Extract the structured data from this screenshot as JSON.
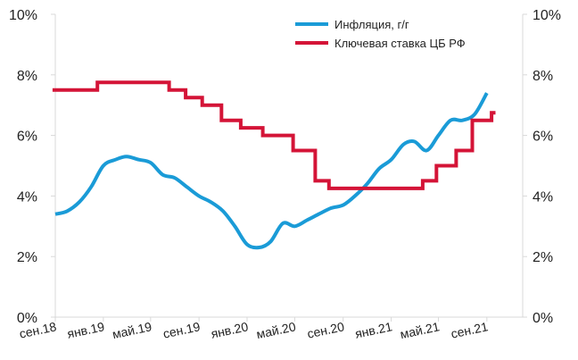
{
  "chart_data": {
    "type": "line",
    "title": "",
    "xlabel": "",
    "ylabel": "",
    "xlim": [
      "2018-09-01",
      "2021-12-01"
    ],
    "ylim": [
      0,
      10
    ],
    "y_ticks": [
      "0%",
      "2%",
      "4%",
      "6%",
      "8%",
      "10%"
    ],
    "y_ticks_right": [
      "0%",
      "2%",
      "4%",
      "6%",
      "8%",
      "10%"
    ],
    "x_ticks": [
      {
        "date": "2018-09-01",
        "label": "сен.18"
      },
      {
        "date": "2019-01-01",
        "label": "янв.19"
      },
      {
        "date": "2019-05-01",
        "label": "май.19"
      },
      {
        "date": "2019-09-01",
        "label": "сен.19"
      },
      {
        "date": "2020-01-01",
        "label": "янв.20"
      },
      {
        "date": "2020-05-01",
        "label": "май.20"
      },
      {
        "date": "2020-09-01",
        "label": "сен.20"
      },
      {
        "date": "2021-01-01",
        "label": "янв.21"
      },
      {
        "date": "2021-05-01",
        "label": "май.21"
      },
      {
        "date": "2021-09-01",
        "label": "сен.21"
      }
    ],
    "grid": false,
    "legend_position": "top-right",
    "series": [
      {
        "name": "Инфляция, г/г",
        "color": "#1a9bd7",
        "style": "smooth",
        "points": [
          [
            "2018-09-01",
            3.4
          ],
          [
            "2018-10-01",
            3.5
          ],
          [
            "2018-11-01",
            3.8
          ],
          [
            "2018-12-01",
            4.3
          ],
          [
            "2019-01-01",
            5.0
          ],
          [
            "2019-02-01",
            5.2
          ],
          [
            "2019-03-01",
            5.3
          ],
          [
            "2019-04-01",
            5.2
          ],
          [
            "2019-05-01",
            5.1
          ],
          [
            "2019-06-01",
            4.7
          ],
          [
            "2019-07-01",
            4.6
          ],
          [
            "2019-08-01",
            4.3
          ],
          [
            "2019-09-01",
            4.0
          ],
          [
            "2019-10-01",
            3.8
          ],
          [
            "2019-11-01",
            3.5
          ],
          [
            "2019-12-01",
            3.0
          ],
          [
            "2020-01-01",
            2.4
          ],
          [
            "2020-02-01",
            2.3
          ],
          [
            "2020-03-01",
            2.5
          ],
          [
            "2020-04-01",
            3.1
          ],
          [
            "2020-05-01",
            3.0
          ],
          [
            "2020-06-01",
            3.2
          ],
          [
            "2020-07-01",
            3.4
          ],
          [
            "2020-08-01",
            3.6
          ],
          [
            "2020-09-01",
            3.7
          ],
          [
            "2020-10-01",
            4.0
          ],
          [
            "2020-11-01",
            4.4
          ],
          [
            "2020-12-01",
            4.9
          ],
          [
            "2021-01-01",
            5.2
          ],
          [
            "2021-02-01",
            5.7
          ],
          [
            "2021-03-01",
            5.8
          ],
          [
            "2021-04-01",
            5.5
          ],
          [
            "2021-05-01",
            6.0
          ],
          [
            "2021-06-01",
            6.5
          ],
          [
            "2021-07-01",
            6.5
          ],
          [
            "2021-08-01",
            6.7
          ],
          [
            "2021-09-01",
            7.4
          ]
        ]
      },
      {
        "name": "Ключевая ставка ЦБ РФ",
        "color": "#d41437",
        "style": "step",
        "points": [
          [
            "2018-08-25",
            7.5
          ],
          [
            "2018-12-17",
            7.75
          ],
          [
            "2019-06-17",
            7.5
          ],
          [
            "2019-07-29",
            7.25
          ],
          [
            "2019-09-09",
            7.0
          ],
          [
            "2019-10-28",
            6.5
          ],
          [
            "2019-12-16",
            6.25
          ],
          [
            "2020-02-10",
            6.0
          ],
          [
            "2020-04-27",
            5.5
          ],
          [
            "2020-06-22",
            4.5
          ],
          [
            "2020-07-27",
            4.25
          ],
          [
            "2021-03-22",
            4.5
          ],
          [
            "2021-04-26",
            5.0
          ],
          [
            "2021-06-15",
            5.5
          ],
          [
            "2021-07-26",
            6.5
          ],
          [
            "2021-09-13",
            6.75
          ],
          [
            "2021-09-23",
            6.75
          ]
        ]
      }
    ]
  }
}
